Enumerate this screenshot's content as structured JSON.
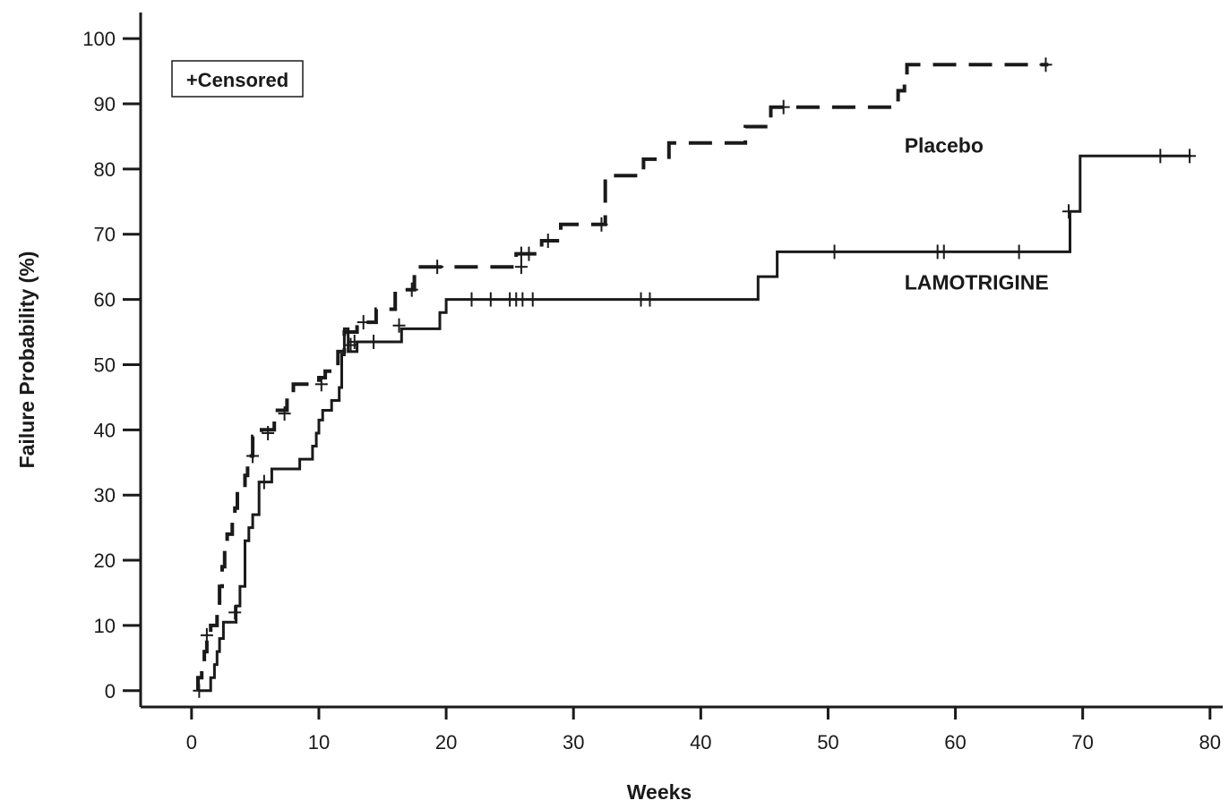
{
  "chart_data": {
    "type": "line",
    "subtype": "kaplan-meier-step",
    "title": "",
    "xlabel": "Weeks",
    "ylabel": "Failure Probability (%)",
    "xlim": [
      -4,
      81
    ],
    "ylim": [
      -2.5,
      104
    ],
    "x_ticks": [
      0,
      10,
      20,
      30,
      40,
      50,
      60,
      70,
      80
    ],
    "y_ticks": [
      0,
      10,
      20,
      30,
      40,
      50,
      60,
      70,
      80,
      90,
      100
    ],
    "grid": false,
    "legend": {
      "text": "+Censored",
      "placement": "top-left"
    },
    "series": [
      {
        "name": "Placebo",
        "line_style": "dashed",
        "color": "#1a1a1a",
        "label_anchor": {
          "x": 56,
          "y": 82.5
        },
        "points": [
          [
            0.5,
            0
          ],
          [
            0.5,
            2
          ],
          [
            0.8,
            2
          ],
          [
            0.8,
            4
          ],
          [
            1.0,
            4
          ],
          [
            1.0,
            6
          ],
          [
            1.2,
            6
          ],
          [
            1.2,
            8
          ],
          [
            1.5,
            8
          ],
          [
            1.5,
            10
          ],
          [
            2.0,
            10
          ],
          [
            2.0,
            13
          ],
          [
            2.2,
            13
          ],
          [
            2.2,
            16
          ],
          [
            2.4,
            16
          ],
          [
            2.4,
            19
          ],
          [
            2.6,
            19
          ],
          [
            2.6,
            22
          ],
          [
            2.8,
            22
          ],
          [
            2.8,
            24
          ],
          [
            3.2,
            24
          ],
          [
            3.2,
            26
          ],
          [
            3.4,
            26
          ],
          [
            3.4,
            28
          ],
          [
            3.6,
            28
          ],
          [
            3.6,
            31
          ],
          [
            4.2,
            31
          ],
          [
            4.2,
            33
          ],
          [
            4.4,
            33
          ],
          [
            4.4,
            36
          ],
          [
            4.8,
            36
          ],
          [
            4.8,
            39
          ],
          [
            5.5,
            39
          ],
          [
            5.5,
            40
          ],
          [
            6.5,
            40
          ],
          [
            6.5,
            43
          ],
          [
            7.5,
            43
          ],
          [
            7.5,
            45
          ],
          [
            8.0,
            45
          ],
          [
            8.0,
            47
          ],
          [
            10.0,
            47
          ],
          [
            10.0,
            48
          ],
          [
            10.5,
            48
          ],
          [
            10.5,
            49
          ],
          [
            11.5,
            49
          ],
          [
            11.5,
            52
          ],
          [
            12.0,
            52
          ],
          [
            12.0,
            55
          ],
          [
            13.0,
            55
          ],
          [
            13.0,
            56.5
          ],
          [
            14.5,
            56.5
          ],
          [
            14.5,
            58.5
          ],
          [
            16.0,
            58.5
          ],
          [
            16.0,
            61.5
          ],
          [
            17.5,
            61.5
          ],
          [
            17.5,
            65
          ],
          [
            25.5,
            65
          ],
          [
            25.5,
            67
          ],
          [
            27.5,
            67
          ],
          [
            27.5,
            69
          ],
          [
            29.0,
            69
          ],
          [
            29.0,
            71.5
          ],
          [
            32.5,
            71.5
          ],
          [
            32.5,
            79
          ],
          [
            35.5,
            79
          ],
          [
            35.5,
            81.5
          ],
          [
            37.5,
            81.5
          ],
          [
            37.5,
            84
          ],
          [
            43.5,
            84
          ],
          [
            43.5,
            86.5
          ],
          [
            45.5,
            86.5
          ],
          [
            45.5,
            89.5
          ],
          [
            55.5,
            89.5
          ],
          [
            55.5,
            92
          ],
          [
            56.0,
            92
          ],
          [
            56.0,
            94
          ],
          [
            56.2,
            94
          ],
          [
            56.2,
            96
          ],
          [
            67.3,
            96
          ]
        ],
        "censored": [
          [
            1.2,
            8.5
          ],
          [
            4.8,
            36
          ],
          [
            6.0,
            39.5
          ],
          [
            7.3,
            42.5
          ],
          [
            10.2,
            47
          ],
          [
            12.5,
            53
          ],
          [
            13.5,
            56.5
          ],
          [
            17.3,
            61.5
          ],
          [
            19.3,
            65
          ],
          [
            25.9,
            65
          ],
          [
            25.9,
            67
          ],
          [
            26.5,
            67
          ],
          [
            28.0,
            69
          ],
          [
            32.2,
            71.5
          ],
          [
            46.5,
            89.5
          ],
          [
            67.1,
            96
          ]
        ]
      },
      {
        "name": "LAMOTRIGINE",
        "line_style": "solid",
        "color": "#1a1a1a",
        "label_anchor": {
          "x": 56,
          "y": 61.5
        },
        "points": [
          [
            0.6,
            0
          ],
          [
            1.5,
            0
          ],
          [
            1.5,
            2
          ],
          [
            1.8,
            2
          ],
          [
            1.8,
            4
          ],
          [
            2.0,
            4
          ],
          [
            2.0,
            6
          ],
          [
            2.2,
            6
          ],
          [
            2.2,
            8
          ],
          [
            2.5,
            8
          ],
          [
            2.5,
            10.5
          ],
          [
            3.5,
            10.5
          ],
          [
            3.5,
            13
          ],
          [
            3.8,
            13
          ],
          [
            3.8,
            16
          ],
          [
            4.2,
            16
          ],
          [
            4.2,
            23
          ],
          [
            4.5,
            23
          ],
          [
            4.5,
            25
          ],
          [
            4.8,
            25
          ],
          [
            4.8,
            27
          ],
          [
            5.3,
            27
          ],
          [
            5.3,
            32
          ],
          [
            6.3,
            32
          ],
          [
            6.3,
            34
          ],
          [
            8.5,
            34
          ],
          [
            8.5,
            35.5
          ],
          [
            9.5,
            35.5
          ],
          [
            9.5,
            37.5
          ],
          [
            9.8,
            37.5
          ],
          [
            9.8,
            39.5
          ],
          [
            10.0,
            39.5
          ],
          [
            10.0,
            41.5
          ],
          [
            10.3,
            41.5
          ],
          [
            10.3,
            43
          ],
          [
            11.0,
            43
          ],
          [
            11.0,
            44.5
          ],
          [
            11.6,
            44.5
          ],
          [
            11.6,
            46.5
          ],
          [
            11.8,
            46.5
          ],
          [
            11.8,
            51.5
          ],
          [
            12.0,
            51.5
          ],
          [
            12.0,
            55.5
          ],
          [
            12.3,
            55.5
          ],
          [
            12.3,
            52
          ],
          [
            13.0,
            52
          ],
          [
            13.0,
            53.5
          ],
          [
            16.5,
            53.5
          ],
          [
            16.5,
            55.5
          ],
          [
            19.5,
            55.5
          ],
          [
            19.5,
            58
          ],
          [
            20.0,
            58
          ],
          [
            20.0,
            60
          ],
          [
            44.5,
            60
          ],
          [
            44.5,
            63.5
          ],
          [
            46.0,
            63.5
          ],
          [
            46.0,
            67.3
          ],
          [
            69.0,
            67.3
          ],
          [
            69.0,
            73.5
          ],
          [
            69.8,
            73.5
          ],
          [
            69.8,
            82
          ],
          [
            78.5,
            82
          ]
        ],
        "censored": [
          [
            0.6,
            0
          ],
          [
            3.4,
            12
          ],
          [
            5.7,
            32
          ],
          [
            12.8,
            53.5
          ],
          [
            14.3,
            53.5
          ],
          [
            16.3,
            56
          ],
          [
            22,
            60
          ],
          [
            23.5,
            60
          ],
          [
            25,
            60
          ],
          [
            25.5,
            60
          ],
          [
            26,
            60
          ],
          [
            26.8,
            60
          ],
          [
            35.3,
            60
          ],
          [
            36,
            60
          ],
          [
            50.5,
            67.3
          ],
          [
            58.6,
            67.3
          ],
          [
            59.1,
            67.3
          ],
          [
            65,
            67.3
          ],
          [
            68.9,
            73.5
          ],
          [
            76.1,
            82
          ],
          [
            78.4,
            82
          ]
        ]
      }
    ]
  }
}
